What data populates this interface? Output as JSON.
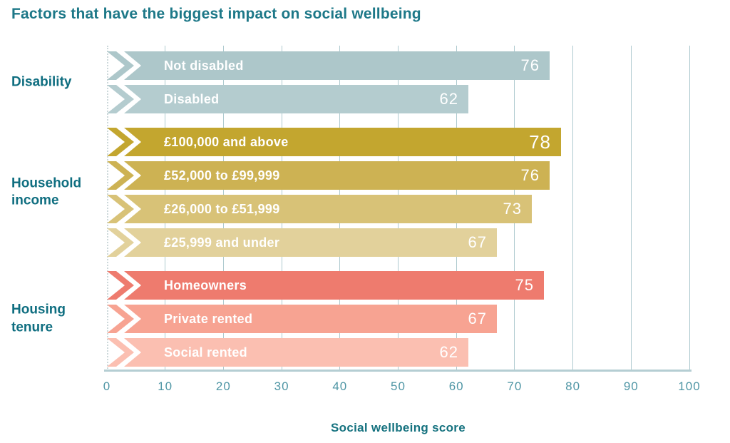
{
  "chart_data": {
    "type": "bar",
    "orientation": "horizontal",
    "title": "Factors that have the biggest impact on social wellbeing",
    "xlabel": "Social wellbeing score",
    "xlim": [
      0,
      100
    ],
    "xticks": [
      0,
      10,
      20,
      30,
      40,
      50,
      60,
      70,
      80,
      90,
      100
    ],
    "grid": "vertical",
    "groups": [
      {
        "label": "Disability",
        "bars": [
          {
            "label": "Not disabled",
            "value": 76,
            "color": "#adc7ca",
            "emphasis": false
          },
          {
            "label": "Disabled",
            "value": 62,
            "color": "#b4cccf",
            "emphasis": false
          }
        ]
      },
      {
        "label": "Household income",
        "bars": [
          {
            "label": "£100,000 and above",
            "value": 78,
            "color": "#c3a62f",
            "emphasis": true
          },
          {
            "label": "£52,000 to £99,999",
            "value": 76,
            "color": "#cdb253",
            "emphasis": false
          },
          {
            "label": "£26,000 to £51,999",
            "value": 73,
            "color": "#d8c277",
            "emphasis": false
          },
          {
            "label": "£25,999 and under",
            "value": 67,
            "color": "#e2d19b",
            "emphasis": false
          }
        ]
      },
      {
        "label": "Housing tenure",
        "bars": [
          {
            "label": "Homeowners",
            "value": 75,
            "color": "#ee7b6e",
            "emphasis": false
          },
          {
            "label": "Private rented",
            "value": 67,
            "color": "#f7a392",
            "emphasis": false
          },
          {
            "label": "Social rented",
            "value": 62,
            "color": "#fbbfb1",
            "emphasis": false
          }
        ]
      }
    ],
    "style": {
      "title_color": "#1d7888",
      "group_label_color": "#0f6e80",
      "tick_label_color": "#4f96a5",
      "axis_title_color": "#15727f",
      "grid_color": "#aecacf",
      "axis_line_color": "#b5ced3",
      "value_label_color": "#ffffff",
      "bar_label_color": "#ffffff"
    }
  }
}
